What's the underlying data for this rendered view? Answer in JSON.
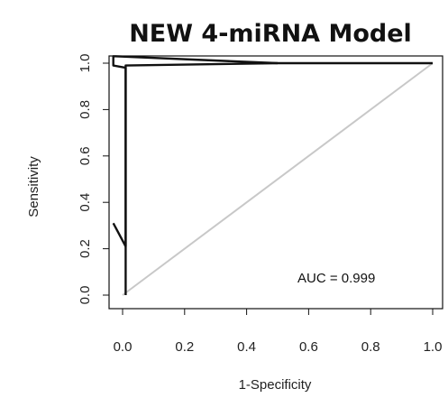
{
  "chart_data": {
    "type": "line",
    "title": "NEW 4-miRNA Model",
    "xlabel": "1-Specificity",
    "ylabel": "Sensitivity",
    "xlim": [
      0,
      1
    ],
    "ylim": [
      0,
      1
    ],
    "x_ticks": [
      "0.0",
      "0.2",
      "0.4",
      "0.6",
      "0.8",
      "1.0"
    ],
    "y_ticks": [
      "0.0",
      "0.2",
      "0.4",
      "0.6",
      "0.8",
      "1.0"
    ],
    "annotation": "AUC = 0.999",
    "grid": false,
    "colors": {
      "roc": "#111111",
      "diagonal": "#c8c8c8"
    },
    "series": [
      {
        "type": "roc",
        "points": [
          [
            0.01,
            0.0
          ],
          [
            0.01,
            0.99
          ],
          [
            0.5,
            1.0
          ],
          [
            1.0,
            1.0
          ]
        ]
      },
      {
        "type": "roc",
        "points": [
          [
            -0.03,
            0.31
          ],
          [
            0.01,
            0.21
          ],
          [
            0.01,
            0.98
          ],
          [
            -0.03,
            0.99
          ],
          [
            -0.03,
            1.03
          ],
          [
            0.5,
            1.0
          ]
        ]
      },
      {
        "type": "reference",
        "points": [
          [
            0,
            0
          ],
          [
            1,
            1
          ]
        ]
      }
    ]
  }
}
